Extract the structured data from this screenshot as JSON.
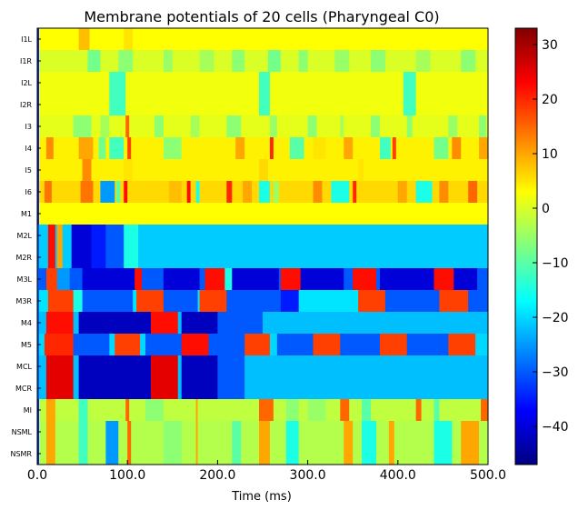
{
  "chart_data": {
    "type": "heatmap",
    "title": "Membrane potentials of 20 cells (Pharyngeal C0)",
    "xlabel": "Time (ms)",
    "ylabel": "",
    "xlim": [
      0,
      500
    ],
    "x_ticks": [
      0,
      100,
      200,
      300,
      400,
      500
    ],
    "x_tick_labels": [
      "0.0",
      "100.0",
      "200.0",
      "300.0",
      "400.0",
      "500.0"
    ],
    "cells": [
      "I1L",
      "I1R",
      "I2L",
      "I2R",
      "I3",
      "I4",
      "I5",
      "I6",
      "M1",
      "M2L",
      "M2R",
      "M3L",
      "M3R",
      "M4",
      "M5",
      "MCL",
      "MCR",
      "MI",
      "NSML",
      "NSMR"
    ],
    "colormap": "jet",
    "colorbar": {
      "range": [
        -47,
        33
      ],
      "ticks": [
        -40,
        -30,
        -20,
        -10,
        0,
        10,
        20,
        30
      ],
      "tick_labels": [
        "−40",
        "−30",
        "−20",
        "−10",
        "0",
        "10",
        "20",
        "30"
      ]
    },
    "baseline_mV": {
      "I1L": 3,
      "I1R": 0,
      "I2L": 2,
      "I2R": 2,
      "I3": 1,
      "I4": 4,
      "I5": 4,
      "I6": 6,
      "M1": 3,
      "M2L": -21,
      "M2R": -21,
      "M3L": -30,
      "M3R": -19,
      "M4": -22,
      "M5": -20,
      "MCL": -22,
      "MCR": -22,
      "MI": -2,
      "NSML": -3,
      "NSMR": -3
    },
    "initial_transient_mV": {
      "I1L": -35,
      "I1R": -35,
      "I2L": -35,
      "I2R": -35,
      "I3": -35,
      "I4": -35,
      "I5": -35,
      "I6": -35,
      "M1": -35,
      "M2L": -30,
      "M2R": -30,
      "M3L": -30,
      "M3R": -30,
      "M4": -30,
      "M5": -30,
      "MCL": -30,
      "MCR": -30,
      "MI": -35,
      "NSML": -35,
      "NSMR": -35
    },
    "events": {
      "I1L": [
        [
          45,
          58,
          8
        ],
        [
          95,
          105,
          5
        ]
      ],
      "I1R": [
        [
          55,
          70,
          -8
        ],
        [
          90,
          105,
          -6
        ],
        [
          140,
          150,
          -5
        ],
        [
          180,
          195,
          -4
        ],
        [
          215,
          230,
          -6
        ],
        [
          255,
          270,
          -8
        ],
        [
          290,
          300,
          -6
        ],
        [
          330,
          345,
          -5
        ],
        [
          370,
          385,
          -6
        ],
        [
          420,
          435,
          -4
        ],
        [
          470,
          485,
          -6
        ]
      ],
      "I2L": [
        [
          80,
          97,
          -12
        ],
        [
          245,
          258,
          -12
        ],
        [
          405,
          420,
          -12
        ]
      ],
      "I2R": [
        [
          80,
          97,
          -12
        ],
        [
          245,
          258,
          -12
        ],
        [
          405,
          420,
          -12
        ]
      ],
      "I3": [
        [
          40,
          60,
          -6
        ],
        [
          70,
          80,
          -4
        ],
        [
          98,
          102,
          15
        ],
        [
          130,
          140,
          -6
        ],
        [
          170,
          180,
          -4
        ],
        [
          210,
          225,
          -6
        ],
        [
          258,
          265,
          -5
        ],
        [
          300,
          310,
          -6
        ],
        [
          335,
          340,
          -4
        ],
        [
          370,
          380,
          -6
        ],
        [
          410,
          415,
          -6
        ],
        [
          455,
          465,
          -5
        ],
        [
          490,
          498,
          -6
        ]
      ],
      "I4": [
        [
          10,
          18,
          12
        ],
        [
          45,
          62,
          10
        ],
        [
          68,
          75,
          -8
        ],
        [
          80,
          95,
          -12
        ],
        [
          100,
          103,
          18
        ],
        [
          140,
          160,
          -6
        ],
        [
          220,
          230,
          10
        ],
        [
          258,
          262,
          20
        ],
        [
          280,
          296,
          -10
        ],
        [
          305,
          320,
          5
        ],
        [
          340,
          350,
          10
        ],
        [
          380,
          392,
          -12
        ],
        [
          393,
          397,
          18
        ],
        [
          440,
          455,
          -8
        ],
        [
          460,
          470,
          12
        ],
        [
          490,
          500,
          10
        ]
      ],
      "I5": [
        [
          50,
          60,
          12
        ],
        [
          95,
          105,
          5
        ],
        [
          245,
          255,
          6
        ],
        [
          355,
          362,
          5
        ]
      ],
      "I6": [
        [
          8,
          16,
          14
        ],
        [
          48,
          62,
          14
        ],
        [
          70,
          85,
          -25
        ],
        [
          87,
          92,
          -10
        ],
        [
          96,
          100,
          22
        ],
        [
          105,
          125,
          6
        ],
        [
          145,
          160,
          8
        ],
        [
          165,
          170,
          22
        ],
        [
          175,
          180,
          -15
        ],
        [
          210,
          215,
          20
        ],
        [
          228,
          238,
          10
        ],
        [
          245,
          258,
          -15
        ],
        [
          262,
          268,
          -5
        ],
        [
          305,
          315,
          12
        ],
        [
          325,
          345,
          -15
        ],
        [
          350,
          353,
          20
        ],
        [
          400,
          410,
          10
        ],
        [
          420,
          437,
          -15
        ],
        [
          445,
          455,
          12
        ],
        [
          478,
          487,
          15
        ]
      ],
      "M1": [],
      "M2L": [
        [
          12,
          20,
          22
        ],
        [
          22,
          27,
          10
        ],
        [
          38,
          60,
          -40
        ],
        [
          60,
          75,
          -35
        ],
        [
          75,
          95,
          -30
        ],
        [
          95,
          112,
          -15
        ]
      ],
      "M2R": [
        [
          12,
          20,
          22
        ],
        [
          22,
          27,
          10
        ],
        [
          38,
          60,
          -40
        ],
        [
          60,
          75,
          -35
        ],
        [
          75,
          95,
          -30
        ],
        [
          95,
          112,
          -15
        ]
      ],
      "M3L": [
        [
          10,
          22,
          18
        ],
        [
          22,
          35,
          -25
        ],
        [
          50,
          108,
          -40
        ],
        [
          108,
          115,
          22
        ],
        [
          115,
          140,
          -30
        ],
        [
          140,
          180,
          -40
        ],
        [
          185,
          208,
          22
        ],
        [
          208,
          215,
          -15
        ],
        [
          215,
          268,
          -40
        ],
        [
          270,
          292,
          22
        ],
        [
          292,
          340,
          -40
        ],
        [
          350,
          375,
          22
        ],
        [
          380,
          440,
          -40
        ],
        [
          440,
          462,
          22
        ],
        [
          462,
          488,
          -40
        ]
      ],
      "M3R": [
        [
          12,
          40,
          18
        ],
        [
          40,
          50,
          -15
        ],
        [
          50,
          105,
          -30
        ],
        [
          110,
          140,
          18
        ],
        [
          140,
          178,
          -30
        ],
        [
          180,
          210,
          18
        ],
        [
          210,
          270,
          -30
        ],
        [
          270,
          290,
          -35
        ],
        [
          355,
          385,
          18
        ],
        [
          385,
          445,
          -30
        ],
        [
          445,
          478,
          18
        ],
        [
          478,
          500,
          -30
        ]
      ],
      "M4": [
        [
          10,
          40,
          22
        ],
        [
          45,
          125,
          -42
        ],
        [
          125,
          155,
          22
        ],
        [
          160,
          200,
          -42
        ],
        [
          200,
          250,
          -30
        ]
      ],
      "M5": [
        [
          8,
          40,
          20
        ],
        [
          40,
          80,
          -30
        ],
        [
          85,
          113,
          18
        ],
        [
          120,
          160,
          -30
        ],
        [
          160,
          190,
          22
        ],
        [
          190,
          230,
          -30
        ],
        [
          230,
          258,
          18
        ],
        [
          265,
          305,
          -30
        ],
        [
          305,
          335,
          18
        ],
        [
          335,
          380,
          -30
        ],
        [
          380,
          410,
          18
        ],
        [
          410,
          455,
          -30
        ],
        [
          455,
          485,
          18
        ]
      ],
      "MCL": [
        [
          10,
          40,
          25
        ],
        [
          45,
          125,
          -42
        ],
        [
          125,
          155,
          25
        ],
        [
          160,
          200,
          -42
        ],
        [
          200,
          230,
          -30
        ]
      ],
      "MCR": [
        [
          10,
          40,
          25
        ],
        [
          45,
          125,
          -42
        ],
        [
          125,
          155,
          25
        ],
        [
          160,
          200,
          -42
        ],
        [
          200,
          230,
          -30
        ]
      ],
      "MI": [
        [
          10,
          20,
          10
        ],
        [
          45,
          55,
          -12
        ],
        [
          98,
          102,
          15
        ],
        [
          120,
          140,
          -6
        ],
        [
          175,
          178,
          10
        ],
        [
          245,
          262,
          15
        ],
        [
          275,
          290,
          -6
        ],
        [
          300,
          320,
          -5
        ],
        [
          335,
          345,
          15
        ],
        [
          360,
          370,
          -10
        ],
        [
          420,
          425,
          15
        ],
        [
          440,
          445,
          -10
        ],
        [
          492,
          500,
          15
        ]
      ],
      "NSML": [
        [
          10,
          20,
          10
        ],
        [
          45,
          55,
          -12
        ],
        [
          75,
          90,
          -25
        ],
        [
          100,
          103,
          15
        ],
        [
          140,
          160,
          -6
        ],
        [
          175,
          178,
          10
        ],
        [
          215,
          225,
          -10
        ],
        [
          245,
          258,
          10
        ],
        [
          275,
          290,
          -15
        ],
        [
          340,
          350,
          10
        ],
        [
          360,
          375,
          -15
        ],
        [
          390,
          395,
          10
        ],
        [
          440,
          460,
          -15
        ],
        [
          470,
          490,
          10
        ]
      ],
      "NSMR": [
        [
          10,
          20,
          10
        ],
        [
          45,
          55,
          -12
        ],
        [
          75,
          90,
          -25
        ],
        [
          100,
          103,
          15
        ],
        [
          140,
          160,
          -6
        ],
        [
          175,
          178,
          10
        ],
        [
          215,
          225,
          -10
        ],
        [
          245,
          258,
          10
        ],
        [
          275,
          290,
          -15
        ],
        [
          340,
          350,
          10
        ],
        [
          360,
          375,
          -15
        ],
        [
          390,
          395,
          10
        ],
        [
          440,
          460,
          -15
        ],
        [
          470,
          490,
          10
        ]
      ]
    }
  }
}
